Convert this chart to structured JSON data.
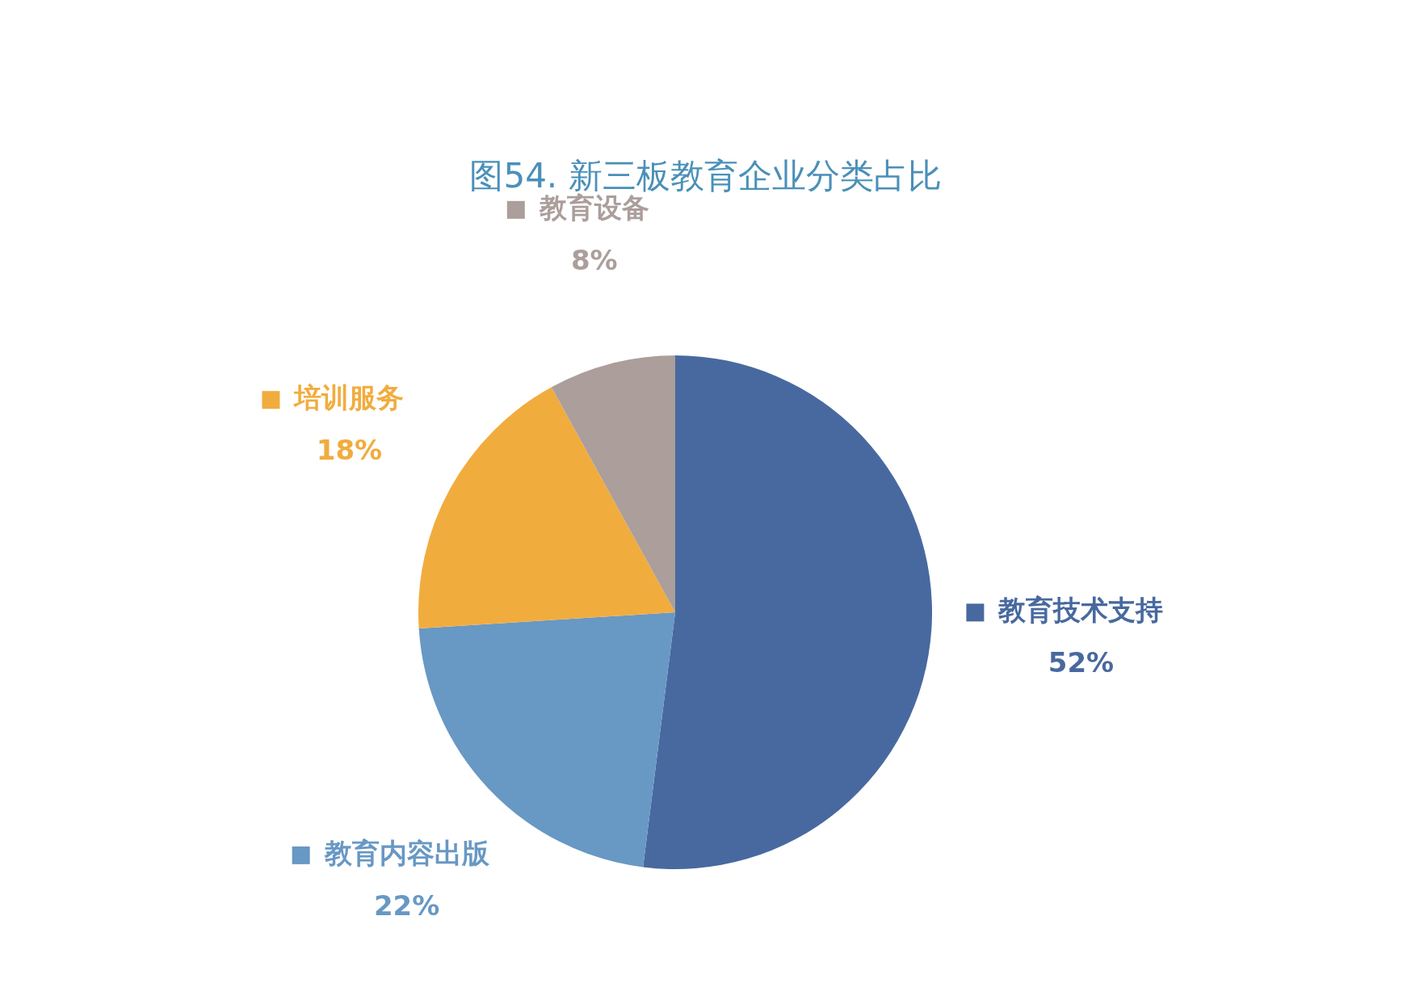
{
  "chart_data": {
    "type": "pie",
    "title": "图54. 新三板教育企业分类占比",
    "categories": [
      "教育技术支持",
      "教育内容出版",
      "培训服务",
      "教育设备"
    ],
    "values": [
      52,
      22,
      18,
      8
    ],
    "colors": [
      "#48699f",
      "#6898c4",
      "#f1ac3e",
      "#ab9e9b"
    ],
    "value_labels": [
      "52%",
      "22%",
      "18%",
      "8%"
    ],
    "legend": "top right"
  }
}
